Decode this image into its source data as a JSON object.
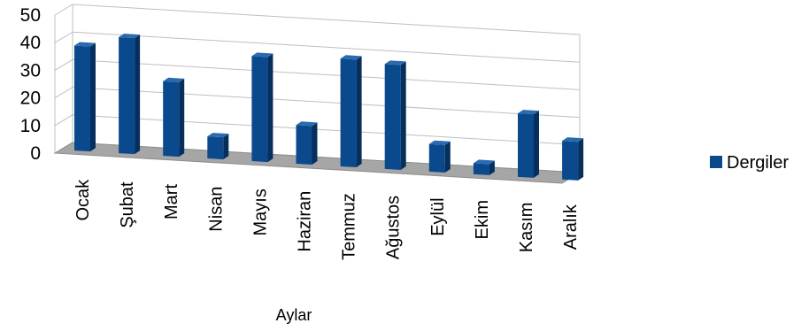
{
  "chart_data": {
    "type": "bar",
    "categories": [
      "Ocak",
      "Şubat",
      "Mart",
      "Nisan",
      "Mayıs",
      "Haziran",
      "Temmuz",
      "Ağustos",
      "Eylül",
      "Ekim",
      "Kasım",
      "Aralık"
    ],
    "series": [
      {
        "name": "Dergiler",
        "values": [
          38,
          42,
          27,
          8,
          38,
          14,
          39,
          38,
          10,
          4,
          23,
          14
        ]
      }
    ],
    "xlabel": "Aylar",
    "ylabel": "",
    "ylim": [
      0,
      50
    ],
    "yticks": [
      0,
      10,
      20,
      30,
      40,
      50
    ],
    "legend_position": "right",
    "grid": true,
    "colors": {
      "bar": "#0a4a8c",
      "bar_side": "#062f5e",
      "bar_top": "#2a6ab0",
      "floor": "#a6a6a6",
      "grid": "#bfbfbf"
    }
  }
}
